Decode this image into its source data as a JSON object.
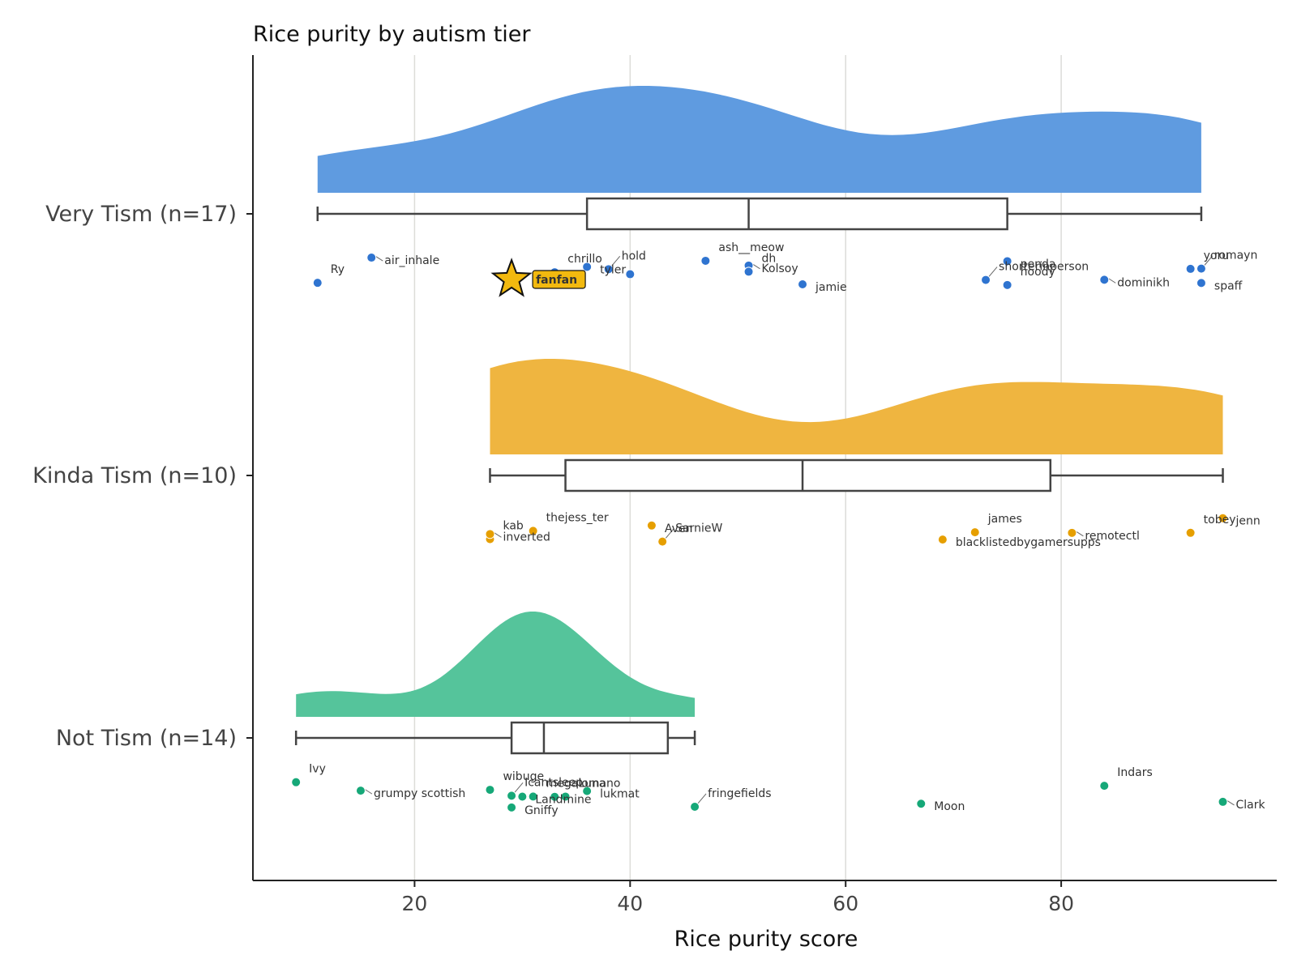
{
  "chart_data": {
    "type": "scatter",
    "title": "Rice purity by autism tier",
    "xlabel": "Rice purity score",
    "ylabel": "",
    "xlim": [
      5,
      100
    ],
    "xticks": [
      20,
      40,
      60,
      80
    ],
    "grid": "vertical",
    "groups": [
      {
        "label": "Very Tism (n=17)",
        "color": "#2f74d0",
        "fill": "#5f9be0",
        "box": {
          "min": 11,
          "q1": 36,
          "median": 51,
          "q3": 75,
          "max": 93
        },
        "points": [
          {
            "name": "Ry",
            "x": 11
          },
          {
            "name": "air_inhale",
            "x": 16
          },
          {
            "name": "chrillo",
            "x": 33
          },
          {
            "name": "tyler",
            "x": 36
          },
          {
            "name": "hold",
            "x": 38
          },
          {
            "name": "",
            "x": 40
          },
          {
            "name": "ash__meow",
            "x": 47
          },
          {
            "name": "Kolsoy",
            "x": 51
          },
          {
            "name": "dh",
            "x": 51
          },
          {
            "name": "jamie",
            "x": 56
          },
          {
            "name": "shorterinperson",
            "x": 73
          },
          {
            "name": "penda",
            "x": 75
          },
          {
            "name": "hoody",
            "x": 75
          },
          {
            "name": "dominikh",
            "x": 84
          },
          {
            "name": "yoru",
            "x": 92
          },
          {
            "name": "spaff",
            "x": 93
          },
          {
            "name": "romayn",
            "x": 93
          }
        ],
        "highlight": {
          "name": "fanfan",
          "x": 29
        }
      },
      {
        "label": "Kinda Tism (n=10)",
        "color": "#e69f00",
        "fill": "#efb540",
        "box": {
          "min": 27,
          "q1": 34,
          "median": 56,
          "q3": 79,
          "max": 95
        },
        "points": [
          {
            "name": "kab",
            "x": 27
          },
          {
            "name": "inverted",
            "x": 27
          },
          {
            "name": "thejess_ter",
            "x": 31
          },
          {
            "name": "Aven",
            "x": 42
          },
          {
            "name": "SarnieW",
            "x": 43
          },
          {
            "name": "blacklistedbygamersupps",
            "x": 69
          },
          {
            "name": "james",
            "x": 72
          },
          {
            "name": "remotectl",
            "x": 81
          },
          {
            "name": "tobey",
            "x": 92
          },
          {
            "name": "jenn",
            "x": 95
          }
        ]
      },
      {
        "label": "Not Tism (n=14)",
        "color": "#16a878",
        "fill": "#55c49b",
        "box": {
          "min": 9,
          "q1": 29,
          "median": 32,
          "q3": 43.5,
          "max": 46
        },
        "points": [
          {
            "name": "Ivy",
            "x": 9
          },
          {
            "name": "grumpy scottish",
            "x": 15
          },
          {
            "name": "wibuge",
            "x": 27
          },
          {
            "name": "Gniffy",
            "x": 29
          },
          {
            "name": "Icantsleep",
            "x": 29
          },
          {
            "name": "Landmine",
            "x": 30
          },
          {
            "name": "megalomano",
            "x": 31
          },
          {
            "name": "",
            "x": 33
          },
          {
            "name": "Luna",
            "x": 34
          },
          {
            "name": "lukmat",
            "x": 36
          },
          {
            "name": "fringefields",
            "x": 46
          },
          {
            "name": "Moon",
            "x": 67
          },
          {
            "name": "Indars",
            "x": 84
          },
          {
            "name": "Clark",
            "x": 95
          }
        ]
      }
    ]
  }
}
